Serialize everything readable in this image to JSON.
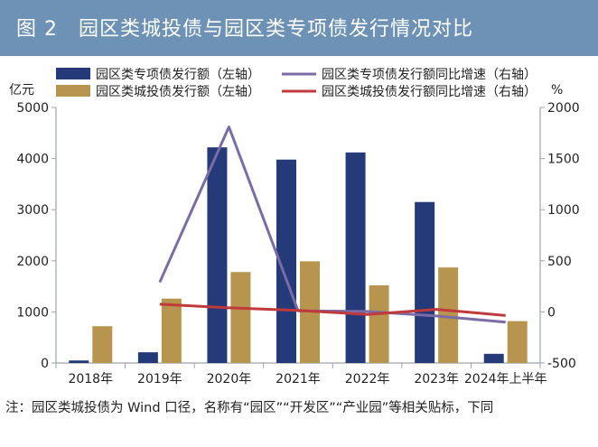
{
  "header": {
    "title": "图 2　园区类城投债与园区类专项债发行情况对比"
  },
  "note": "注：园区类城投债为 Wind 口径，名称有“园区”“开发区”“产业园”等相关贴标，下同",
  "colors": {
    "title_bg": "#6d92b5",
    "bar_special": "#253a78",
    "bar_chengtou": "#b8954e",
    "line_special": "#7b6ba6",
    "line_chengtou": "#c0393b",
    "axis": "#9aa3ad"
  },
  "chart_data": {
    "type": "bar",
    "categories": [
      "2018年",
      "2019年",
      "2020年",
      "2021年",
      "2022年",
      "2023年",
      "2024年上半年"
    ],
    "series": [
      {
        "name": "园区类专项债发行额（左轴）",
        "kind": "bar",
        "axis": "left",
        "values": [
          50,
          210,
          4220,
          3980,
          4120,
          3150,
          180
        ]
      },
      {
        "name": "园区类城投债发行额（左轴）",
        "kind": "bar",
        "axis": "left",
        "values": [
          720,
          1260,
          1780,
          1990,
          1520,
          1870,
          820
        ]
      },
      {
        "name": "园区类专项债发行额同比增速（右轴）",
        "kind": "line",
        "axis": "right",
        "values": [
          null,
          290,
          1810,
          10,
          5,
          -40,
          -100
        ]
      },
      {
        "name": "园区类城投债发行额同比增速（右轴）",
        "kind": "line",
        "axis": "right",
        "values": [
          null,
          75,
          40,
          15,
          -25,
          25,
          -35
        ]
      }
    ],
    "left_axis": {
      "unit": "亿元",
      "min": 0,
      "max": 5000,
      "ticks": [
        "0",
        "1000",
        "2000",
        "3000",
        "4000",
        "5000"
      ]
    },
    "right_axis": {
      "unit": "%",
      "min": -500,
      "max": 2000,
      "ticks": [
        "-500",
        "0",
        "500",
        "1000",
        "1500",
        "2000"
      ]
    },
    "legend_position": "top",
    "grid": false
  }
}
